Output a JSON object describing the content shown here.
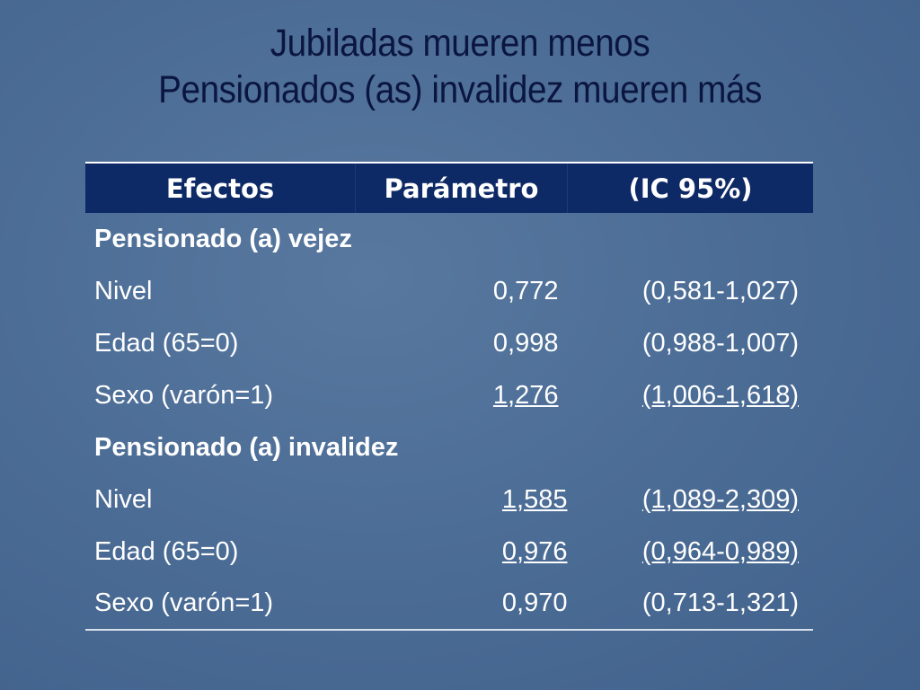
{
  "title": [
    "Jubiladas mueren menos",
    "Pensionados (as) invalidez mueren más"
  ],
  "table": {
    "header": [
      "Efectos",
      "Parámetro",
      "(IC 95%)"
    ],
    "sections": [
      {
        "label": "Pensionado (a) vejez",
        "rows": [
          [
            "Nivel",
            "0,772",
            "(0,581-1,027)"
          ],
          [
            "Edad (65=0)",
            "0,998",
            "(0,988-1,007)"
          ],
          [
            "Sexo (varón=1)",
            "1,276",
            "(1,006-1,618)"
          ]
        ]
      },
      {
        "label": "Pensionado (a) invalidez",
        "rows": [
          [
            "Nivel",
            "1,585",
            "(1,089-2,309)"
          ],
          [
            "Edad (65=0)",
            "0,976",
            "(0,964-0,989)"
          ],
          [
            "Sexo (varón=1)",
            "0,970",
            "(0,713-1,321)"
          ]
        ]
      }
    ]
  }
}
